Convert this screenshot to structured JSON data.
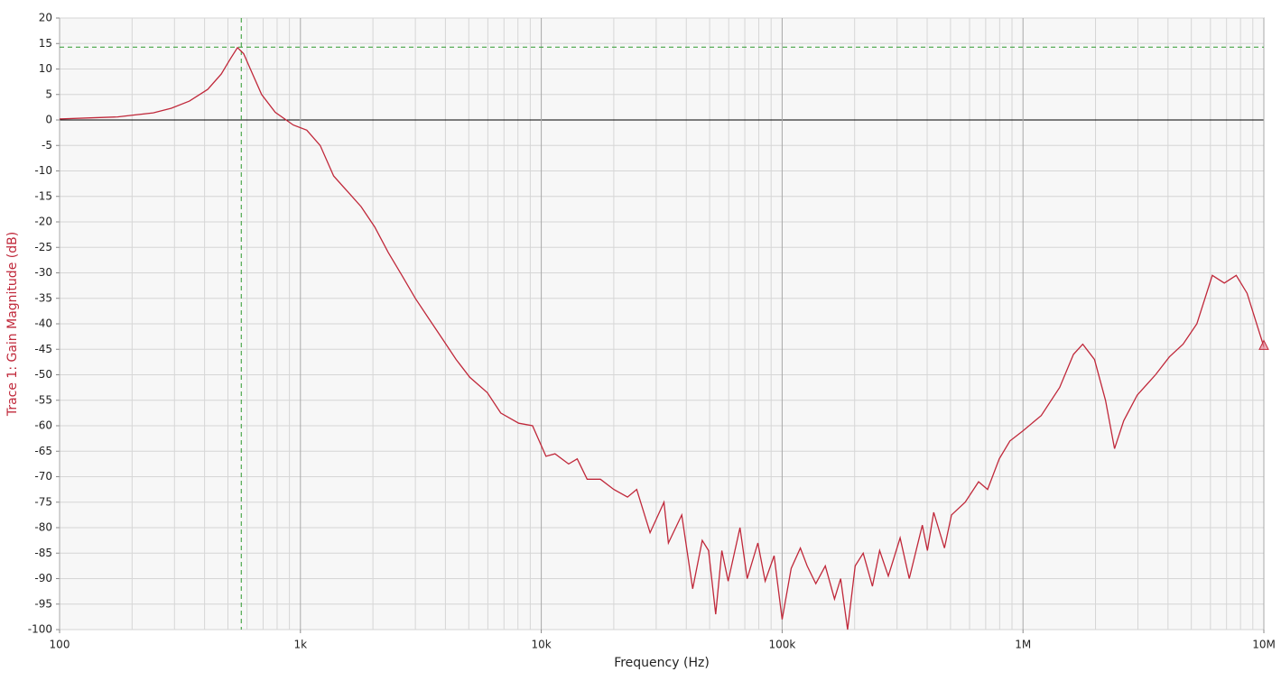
{
  "chart_data": {
    "type": "line",
    "x_label": "Frequency (Hz)",
    "y_label": "Trace 1: Gain Magnitude (dB)",
    "xscale": "log",
    "grid": true,
    "xlim": [
      100,
      10000000
    ],
    "xticks": [
      {
        "value": 100,
        "label": "100"
      },
      {
        "value": 1000,
        "label": "1k"
      },
      {
        "value": 10000,
        "label": "10k"
      },
      {
        "value": 100000,
        "label": "100k"
      },
      {
        "value": 1000000,
        "label": "1M"
      },
      {
        "value": 10000000,
        "label": "10M"
      }
    ],
    "ylim": [
      -100,
      20
    ],
    "yticks": [
      20,
      15,
      10,
      5,
      0,
      -5,
      -10,
      -15,
      -20,
      -25,
      -30,
      -35,
      -40,
      -45,
      -50,
      -55,
      -60,
      -65,
      -70,
      -75,
      -80,
      -85,
      -90,
      -95,
      -100
    ],
    "cursor": {
      "x": 568,
      "y": 14.3,
      "color": "#2e9a2e"
    },
    "series": [
      {
        "name": "Trace 1",
        "color": "#c0283a",
        "x": [
          100,
          134,
          174,
          206,
          245,
          291,
          346,
          412,
          469,
          512,
          548,
          581,
          633,
          690,
          786,
          934,
          1062,
          1208,
          1374,
          1567,
          1786,
          2035,
          2316,
          2637,
          3000,
          3414,
          3891,
          4431,
          5050,
          5970,
          6790,
          8060,
          9200,
          10460,
          11400,
          12990,
          14100,
          15500,
          17600,
          20000,
          22800,
          24900,
          28300,
          32300,
          33700,
          38300,
          42500,
          46600,
          49500,
          53000,
          56200,
          59700,
          66800,
          71600,
          79300,
          85000,
          92600,
          100000,
          109000,
          119000,
          127000,
          138000,
          151000,
          165000,
          175000,
          187000,
          201000,
          217000,
          237000,
          254000,
          276000,
          309000,
          337000,
          382000,
          401000,
          426000,
          472000,
          505000,
          575000,
          654000,
          713000,
          797000,
          882000,
          1000000,
          1190000,
          1420000,
          1620000,
          1770000,
          1980000,
          2200000,
          2400000,
          2620000,
          2980000,
          3550000,
          4050000,
          4620000,
          5270000,
          6110000,
          6850000,
          7680000,
          8520000,
          10000000
        ],
        "values": [
          0.2,
          0.4,
          0.6,
          1.0,
          1.4,
          2.3,
          3.7,
          6.0,
          9.0,
          12,
          14.2,
          13,
          9,
          5,
          1.5,
          -1,
          -2,
          -5,
          -11,
          -14,
          -17,
          -21,
          -26,
          -30.5,
          -35,
          -39,
          -43,
          -47,
          -50.5,
          -53.5,
          -57.5,
          -59.5,
          -60,
          -66,
          -65.5,
          -67.5,
          -66.5,
          -70.5,
          -70.5,
          -72.5,
          -74,
          -72.5,
          -81,
          -75,
          -83,
          -77.5,
          -92,
          -82.5,
          -84.5,
          -97,
          -84.5,
          -90.5,
          -80,
          -90,
          -83,
          -90.5,
          -85.5,
          -98,
          -88,
          -84,
          -87.5,
          -91,
          -87.5,
          -94,
          -90,
          -100,
          -87.5,
          -85,
          -91.5,
          -84.5,
          -89.5,
          -82,
          -90,
          -79.5,
          -84.5,
          -77,
          -84,
          -77.5,
          -75,
          -71,
          -72.5,
          -66.5,
          -63,
          -61,
          -58,
          -52.5,
          -46,
          -44,
          -47,
          -55,
          -64.5,
          -59,
          -54,
          -50,
          -46.5,
          -44,
          -40,
          -30.5,
          -32,
          -30.5,
          -34,
          -44.5
        ]
      }
    ]
  }
}
